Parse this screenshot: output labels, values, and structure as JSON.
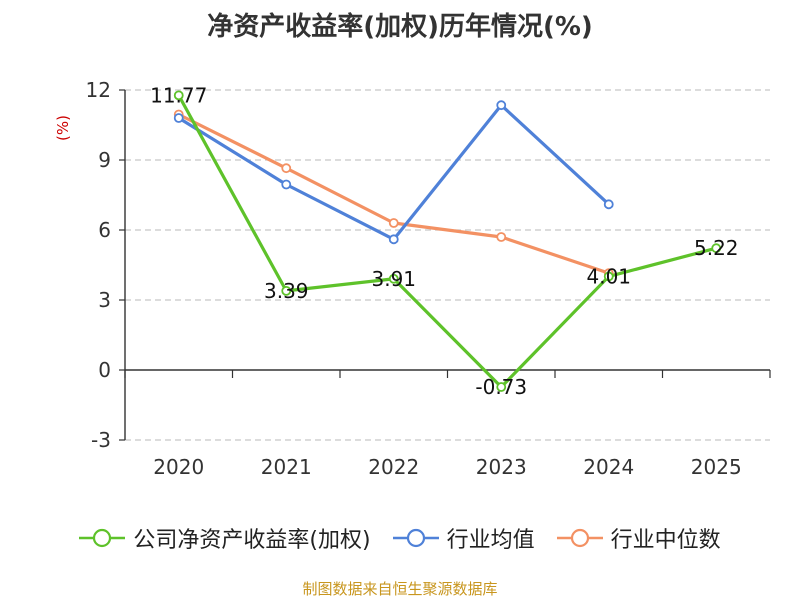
{
  "chart_data": {
    "type": "line",
    "title": "净资产收益率(加权)历年情况(%)",
    "ylabel": "(%)",
    "categories": [
      "2020",
      "2021",
      "2022",
      "2023",
      "2024",
      "2025"
    ],
    "ylim": [
      -3,
      12
    ],
    "yticks": [
      -3,
      0,
      3,
      6,
      9,
      12
    ],
    "grid": true,
    "legend_position": "bottom",
    "series": [
      {
        "name": "公司净资产收益率(加权)",
        "color": "#5ec22a",
        "values": [
          11.77,
          3.39,
          3.91,
          -0.73,
          4.01,
          5.22
        ],
        "show_labels": true
      },
      {
        "name": "行业均值",
        "color": "#4f81d8",
        "values": [
          10.8,
          7.95,
          5.6,
          11.35,
          7.1,
          null
        ],
        "show_labels": false
      },
      {
        "name": "行业中位数",
        "color": "#f39163",
        "values": [
          10.95,
          8.65,
          6.3,
          5.7,
          4.15,
          null
        ],
        "show_labels": false
      }
    ]
  },
  "source_note": "制图数据来自恒生聚源数据库"
}
